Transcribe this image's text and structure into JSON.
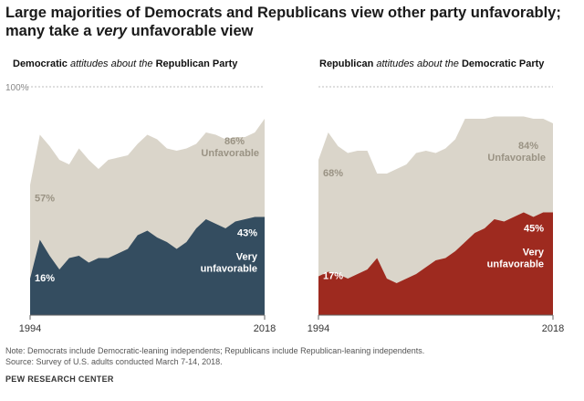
{
  "header": {
    "title_part1": "Large majorities of Democrats and Republicans view other party unfavorably;",
    "title_part2_a": "many take a ",
    "title_part2_italic": "very",
    "title_part2_b": " unfavorable view"
  },
  "panels": [
    {
      "title_bold_a": "Democratic",
      "title_italic": " attitudes about the ",
      "title_bold_b": "Republican Party"
    },
    {
      "title_bold_a": "Republican",
      "title_italic": " attitudes about the ",
      "title_bold_b": "Democratic Party"
    }
  ],
  "chart_data": [
    {
      "type": "area",
      "title": "Democratic attitudes about the Republican Party",
      "ylim": [
        0,
        100
      ],
      "y_tick_label": "100%",
      "x": [
        1994,
        1995,
        1996,
        1997,
        1998,
        1999,
        2000,
        2001,
        2002,
        2003,
        2004,
        2005,
        2006,
        2007,
        2008,
        2009,
        2010,
        2011,
        2012,
        2013,
        2014,
        2015,
        2016,
        2017,
        2018
      ],
      "x_tick_labels": [
        "1994",
        "2018"
      ],
      "series": [
        {
          "name": "Unfavorable",
          "color": "#dad5ca",
          "values": [
            57,
            79,
            74,
            68,
            66,
            73,
            68,
            64,
            68,
            69,
            70,
            75,
            79,
            77,
            73,
            72,
            73,
            75,
            80,
            79,
            77,
            78,
            78,
            80,
            86
          ]
        },
        {
          "name": "Very unfavorable",
          "color": "#344d60",
          "values": [
            16,
            33,
            26,
            20,
            25,
            26,
            23,
            25,
            25,
            27,
            29,
            35,
            37,
            34,
            32,
            29,
            32,
            38,
            42,
            40,
            38,
            41,
            42,
            43,
            43
          ]
        }
      ],
      "annotations": {
        "unfav_start": "57%",
        "unfav_end": "86%",
        "unfav_label": "Unfavorable",
        "very_start": "16%",
        "very_end": "43%",
        "very_label_1": "Very",
        "very_label_2": "unfavorable"
      },
      "palette": {
        "text_on_light": "#9a9384",
        "text_on_dark": "#ffffff"
      }
    },
    {
      "type": "area",
      "title": "Republican attitudes about the Democratic Party",
      "ylim": [
        0,
        100
      ],
      "x": [
        1994,
        1995,
        1996,
        1997,
        1998,
        1999,
        2000,
        2001,
        2002,
        2003,
        2004,
        2005,
        2006,
        2007,
        2008,
        2009,
        2010,
        2011,
        2012,
        2013,
        2014,
        2015,
        2016,
        2017,
        2018
      ],
      "x_tick_labels": [
        "1994",
        "2018"
      ],
      "series": [
        {
          "name": "Unfavorable",
          "color": "#dad5ca",
          "values": [
            68,
            80,
            74,
            71,
            72,
            72,
            62,
            62,
            64,
            66,
            71,
            72,
            71,
            73,
            77,
            86,
            86,
            86,
            87,
            87,
            87,
            87,
            86,
            86,
            84
          ]
        },
        {
          "name": "Very unfavorable",
          "color": "#9e2a1f",
          "values": [
            17,
            19,
            18,
            16,
            18,
            20,
            25,
            16,
            14,
            16,
            18,
            21,
            24,
            25,
            28,
            32,
            36,
            38,
            42,
            41,
            43,
            45,
            43,
            45,
            45
          ]
        }
      ],
      "annotations": {
        "unfav_start": "68%",
        "unfav_end": "84%",
        "unfav_label": "Unfavorable",
        "very_start": "17%",
        "very_end": "45%",
        "very_label_1": "Very",
        "very_label_2": "unfavorable"
      },
      "palette": {
        "text_on_light": "#9a9384",
        "text_on_dark": "#ffffff"
      }
    }
  ],
  "notes": {
    "line1": "Note: Democrats include Democratic-leaning independents; Republicans include Republican-leaning independents.",
    "line2": "Source: Survey of U.S. adults conducted March 7-14, 2018.",
    "org": "PEW RESEARCH CENTER"
  }
}
